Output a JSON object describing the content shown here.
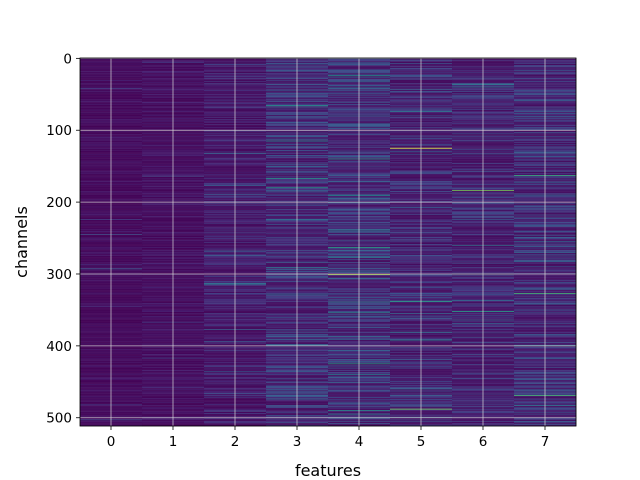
{
  "chart_data": {
    "type": "heatmap",
    "title": "",
    "xlabel": "features",
    "ylabel": "channels",
    "x_categories": [
      "0",
      "1",
      "2",
      "3",
      "4",
      "5",
      "6",
      "7"
    ],
    "x_ticks": [
      "0",
      "1",
      "2",
      "3",
      "4",
      "5",
      "6",
      "7"
    ],
    "y_ticks": [
      "0",
      "100",
      "200",
      "300",
      "400",
      "500"
    ],
    "ylim": [
      511.5,
      -0.5
    ],
    "n_rows": 512,
    "n_cols": 8,
    "y_inverted": true,
    "grid": true,
    "colormap": "viridis",
    "column_mean_intensity": [
      0.06,
      0.08,
      0.14,
      0.24,
      0.26,
      0.2,
      0.2,
      0.23
    ],
    "highlights": [
      {
        "col": 5,
        "row": 125,
        "value": 1.0
      },
      {
        "col": 4,
        "row": 301,
        "value": 0.85
      },
      {
        "col": 6,
        "row": 184,
        "value": 0.8
      },
      {
        "col": 3,
        "row": 180,
        "value": 0.55
      },
      {
        "col": 3,
        "row": 66,
        "value": 0.55
      },
      {
        "col": 5,
        "row": 338,
        "value": 0.6
      },
      {
        "col": 5,
        "row": 488,
        "value": 0.8
      },
      {
        "col": 7,
        "row": 163,
        "value": 0.65
      },
      {
        "col": 7,
        "row": 327,
        "value": 0.7
      },
      {
        "col": 7,
        "row": 469,
        "value": 0.7
      },
      {
        "col": 6,
        "row": 352,
        "value": 0.6
      },
      {
        "col": 4,
        "row": 140,
        "value": 0.55
      },
      {
        "col": 4,
        "row": 263,
        "value": 0.6
      },
      {
        "col": 4,
        "row": 425,
        "value": 0.6
      },
      {
        "col": 3,
        "row": 115,
        "value": 0.5
      },
      {
        "col": 2,
        "row": 314,
        "value": 0.45
      },
      {
        "col": 6,
        "row": 300,
        "value": 0.55
      },
      {
        "col": 7,
        "row": 400,
        "value": 0.55
      }
    ]
  },
  "colors": {
    "viridis_low": "#440154",
    "viridis_mid": "#21918c",
    "viridis_high": "#fde725",
    "grid": "#d9d9d9"
  }
}
